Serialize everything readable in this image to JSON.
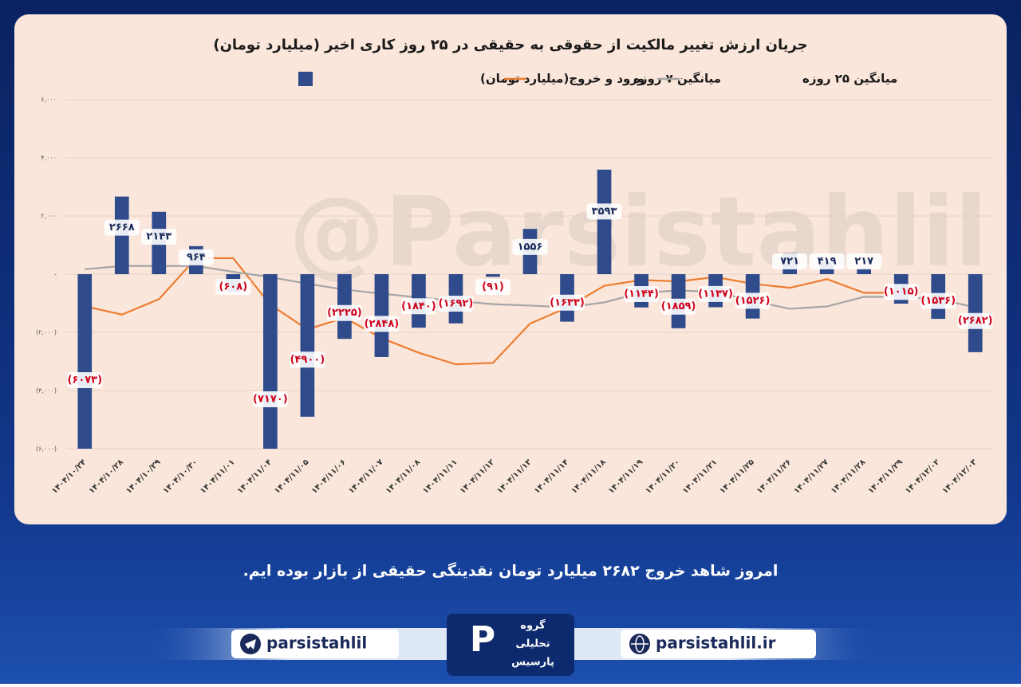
{
  "chart_data": {
    "type": "bar",
    "title": "جریان ارزش تغییر مالکیت از حقوقی به حقیقی در ۲۵ روز کاری اخیر (میلیارد تومان)",
    "watermark": "@Parsistahlil",
    "categories": [
      "۱۴۰۴/۱۰/۲۴",
      "۱۴۰۴/۱۰/۲۸",
      "۱۴۰۴/۱۰/۲۹",
      "۱۴۰۴/۱۰/۳۰",
      "۱۴۰۴/۱۱/۰۱",
      "۱۴۰۴/۱۱/۰۴",
      "۱۴۰۴/۱۱/۰۵",
      "۱۴۰۴/۱۱/۰۶",
      "۱۴۰۴/۱۱/۰۷",
      "۱۴۰۴/۱۱/۰۸",
      "۱۴۰۴/۱۱/۱۱",
      "۱۴۰۴/۱۱/۱۲",
      "۱۴۰۴/۱۱/۱۳",
      "۱۴۰۴/۱۱/۱۴",
      "۱۴۰۴/۱۱/۱۸",
      "۱۴۰۴/۱۱/۱۹",
      "۱۴۰۴/۱۱/۲۰",
      "۱۴۰۴/۱۱/۲۱",
      "۱۴۰۴/۱۱/۲۵",
      "۱۴۰۴/۱۱/۲۶",
      "۱۴۰۴/۱۱/۲۷",
      "۱۴۰۴/۱۱/۲۸",
      "۱۴۰۴/۱۱/۲۹",
      "۱۴۰۴/۱۲/۰۲",
      "۱۴۰۴/۱۲/۰۳"
    ],
    "series": [
      {
        "name": "ورود و خروج(میلیارد تومان)",
        "type": "bar",
        "color": "#2f4b8c",
        "values": [
          -6073,
          2668,
          2143,
          964,
          -608,
          -7170,
          -4900,
          -2225,
          -2848,
          -1840,
          -1692,
          -91,
          1556,
          -1633,
          3593,
          -1144,
          -1859,
          -1137,
          -1526,
          721,
          419,
          217,
          -1015,
          -1536,
          -2682
        ],
        "value_labels": [
          "(۶۰۷۳)",
          "۲۶۶۸",
          "۲۱۴۳",
          "۹۶۴",
          "(۶۰۸)",
          "(۷۱۷۰)",
          "(۴۹۰۰)",
          "(۲۲۲۵)",
          "(۲۸۴۸)",
          "(۱۸۴۰)",
          "(۱۶۹۲)",
          "(۹۱)",
          "۱۵۵۶",
          "(۱۶۳۳)",
          "۳۵۹۳",
          "(۱۱۴۴)",
          "(۱۸۵۹)",
          "(۱۱۳۷)",
          "(۱۵۲۶)",
          "۷۲۱",
          "۴۱۹",
          "۲۱۷",
          "(۱۰۱۵)",
          "(۱۵۳۶)",
          "(۲۶۸۲)"
        ]
      },
      {
        "name": "میانگین ۷ روزه",
        "type": "line",
        "color": "#ed7d31",
        "values": [
          -1100,
          -1390,
          -860,
          550,
          550,
          -1050,
          -1900,
          -1500,
          -2200,
          -2700,
          -3100,
          -3050,
          -1700,
          -1150,
          -400,
          -200,
          -250,
          -100,
          -330,
          -470,
          -170,
          -640,
          -640,
          null,
          null
        ]
      },
      {
        "name": "میانگین ۲۵ روزه",
        "type": "line",
        "color": "#a5a5a5",
        "values": [
          170,
          280,
          280,
          280,
          80,
          -100,
          -330,
          -530,
          -670,
          -800,
          -920,
          -1030,
          -1080,
          -1140,
          -970,
          -640,
          -560,
          -610,
          -920,
          -1190,
          -1110,
          -780,
          -780,
          -860,
          -1140
        ]
      }
    ],
    "ylim": [
      -6000,
      6000
    ],
    "yticks": [
      {
        "value": -6000,
        "label": "(۶,۰۰۰)"
      },
      {
        "value": -4000,
        "label": "(۴,۰۰۰)"
      },
      {
        "value": -2000,
        "label": "(۲,۰۰۰)"
      },
      {
        "value": 0,
        "label": "-"
      },
      {
        "value": 2000,
        "label": "۲,۰۰۰"
      },
      {
        "value": 4000,
        "label": "۴,۰۰۰"
      },
      {
        "value": 6000,
        "label": "۶,۰۰۰"
      }
    ],
    "grid": true
  },
  "footer": {
    "message": "امروز شاهد خروج ۲۶۸۲ میلیارد تومان نقدینگی حقیقی از بازار بوده ایم.",
    "telegram": "parsistahlil",
    "website": "parsistahlil.ir",
    "logo_text": [
      "گروه",
      "تحلیلی",
      "پارسیس"
    ]
  }
}
